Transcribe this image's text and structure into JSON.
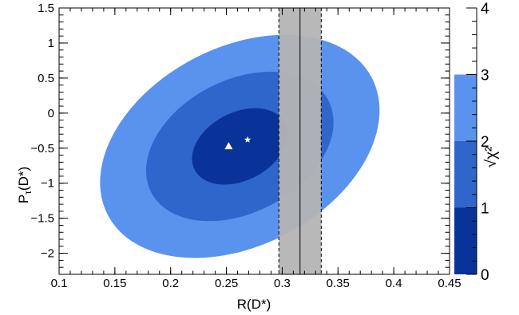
{
  "chart_data": {
    "type": "contour",
    "xlabel": "R(D*)",
    "ylabel_main": "P",
    "ylabel_sub": "τ",
    "ylabel_tail": "(D*)",
    "zlabel": "√χ²",
    "xlim": [
      0.1,
      0.45
    ],
    "ylim": [
      -2.3,
      1.5
    ],
    "zlim": [
      0,
      4
    ],
    "x_ticks": [
      "0.1",
      "0.15",
      "0.2",
      "0.25",
      "0.3",
      "0.35",
      "0.4",
      "0.45"
    ],
    "y_ticks": [
      "1.5",
      "1",
      "0.5",
      "0",
      "−0.5",
      "−1",
      "−1.5",
      "−2"
    ],
    "z_ticks": [
      "0",
      "1",
      "2",
      "3",
      "4"
    ],
    "colorbar": [
      {
        "from": 0,
        "to": 1,
        "color": "#0a3399"
      },
      {
        "from": 1,
        "to": 2,
        "color": "#2e66cc"
      },
      {
        "from": 2,
        "to": 3,
        "color": "#5a93ee"
      }
    ],
    "contours": [
      {
        "level": 3,
        "color": "#5a93ee",
        "cx": 0.262,
        "cy": -0.475,
        "rx": 0.1334,
        "ry": 1.414,
        "rotation_deg": -27.5
      },
      {
        "level": 2,
        "color": "#2e66cc",
        "cx": 0.262,
        "cy": -0.475,
        "rx": 0.0895,
        "ry": 0.946,
        "rotation_deg": -27.5
      },
      {
        "level": 1,
        "color": "#0a3399",
        "cx": 0.262,
        "cy": -0.475,
        "rx": 0.0456,
        "ry": 0.485,
        "rotation_deg": -27.5
      }
    ],
    "measurement_band": {
      "center": 0.316,
      "low": 0.297,
      "high": 0.335,
      "color": "#b4b4b4"
    },
    "markers": [
      {
        "type": "triangle",
        "x": 0.252,
        "y": -0.47,
        "color": "#ffffff"
      },
      {
        "type": "star",
        "x": 0.269,
        "y": -0.38,
        "color": "#ffffff"
      }
    ]
  }
}
